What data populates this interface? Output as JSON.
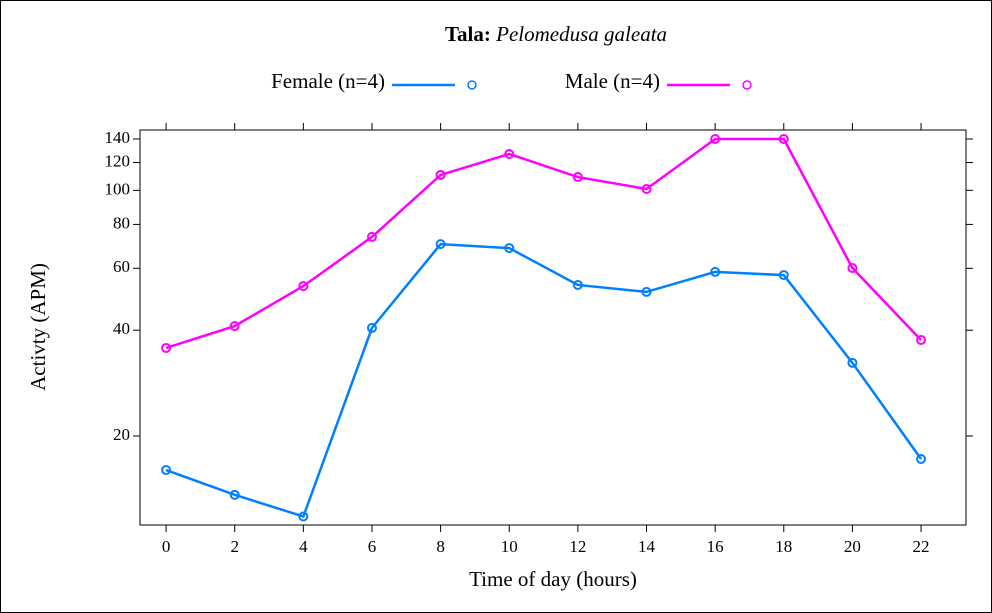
{
  "chart_data": {
    "type": "line",
    "title": {
      "label": "Tala:",
      "species": "Pelomedusa galeata"
    },
    "x_label": "Time of day (hours)",
    "y_label": "Activty (APM)",
    "x": [
      0,
      2,
      4,
      6,
      8,
      10,
      12,
      14,
      16,
      18,
      20,
      22
    ],
    "series": [
      {
        "name": "Female (n=4)",
        "color": "#0080ff",
        "values": [
          16.0,
          13.6,
          11.8,
          40.6,
          70.3,
          68.5,
          53.8,
          51.4,
          58.6,
          57.4,
          32.3,
          17.2
        ]
      },
      {
        "name": "Male (n=4)",
        "color": "#ff00ff",
        "values": [
          35.6,
          41.1,
          53.4,
          73.7,
          110.6,
          126.9,
          109.1,
          100.9,
          140,
          140,
          60.1,
          37.5
        ]
      }
    ],
    "xlim": [
      -0.76,
      23.31
    ],
    "xticks": [
      0,
      2,
      4,
      6,
      8,
      10,
      12,
      14,
      16,
      18,
      20,
      22
    ],
    "ylim": [
      11.16,
      148.5
    ],
    "yticks": [
      20,
      40,
      60,
      80,
      100,
      120,
      140
    ],
    "log_y": true,
    "legend": "top"
  }
}
